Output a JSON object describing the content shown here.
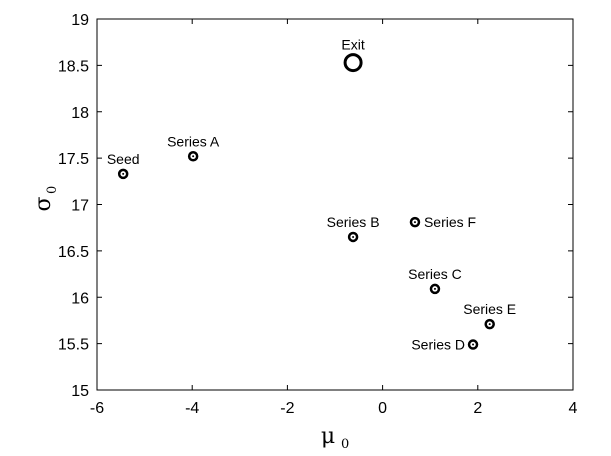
{
  "chart_data": {
    "type": "scatter",
    "xlabel": "μ",
    "xlabel_subscript": "0",
    "ylabel": "σ",
    "ylabel_subscript": "0",
    "xlim": [
      -6,
      4
    ],
    "ylim": [
      15,
      19
    ],
    "xticks": [
      -6,
      -4,
      -2,
      0,
      2,
      4
    ],
    "yticks": [
      15,
      15.5,
      16,
      16.5,
      17,
      17.5,
      18,
      18.5,
      19
    ],
    "xtick_labels": [
      "-6",
      "-4",
      "-2",
      "0",
      "2",
      "4"
    ],
    "ytick_labels": [
      "15",
      "15.5",
      "16",
      "16.5",
      "17",
      "17.5",
      "18",
      "18.5",
      "19"
    ],
    "grid": false,
    "points": [
      {
        "label": "Seed",
        "x": -5.45,
        "y": 17.33,
        "marker": "small",
        "label_pos": "above"
      },
      {
        "label": "Series A",
        "x": -3.98,
        "y": 17.52,
        "marker": "small",
        "label_pos": "above"
      },
      {
        "label": "Exit",
        "x": -0.62,
        "y": 18.53,
        "marker": "large",
        "label_pos": "above"
      },
      {
        "label": "Series B",
        "x": -0.62,
        "y": 16.65,
        "marker": "small",
        "label_pos": "above"
      },
      {
        "label": "Series F",
        "x": 0.68,
        "y": 16.81,
        "marker": "small",
        "label_pos": "right"
      },
      {
        "label": "Series C",
        "x": 1.1,
        "y": 16.09,
        "marker": "small",
        "label_pos": "above"
      },
      {
        "label": "Series E",
        "x": 2.25,
        "y": 15.71,
        "marker": "small",
        "label_pos": "above"
      },
      {
        "label": "Series D",
        "x": 1.9,
        "y": 15.49,
        "marker": "small",
        "label_pos": "left"
      }
    ]
  }
}
